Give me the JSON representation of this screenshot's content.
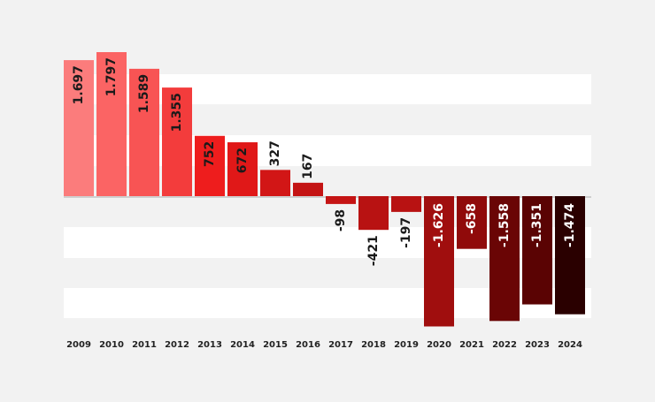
{
  "chart_data": {
    "type": "bar",
    "categories": [
      "2009",
      "2010",
      "2011",
      "2012",
      "2013",
      "2014",
      "2015",
      "2016",
      "2017",
      "2018",
      "2019",
      "2020",
      "2021",
      "2022",
      "2023",
      "2024"
    ],
    "values": [
      1697,
      1797,
      1589,
      1355,
      752,
      672,
      327,
      167,
      -98,
      -421,
      -197,
      -1626,
      -658,
      -1558,
      -1351,
      -1474
    ],
    "value_labels": [
      "1.697",
      "1.797",
      "1.589",
      "1.355",
      "752",
      "672",
      "327",
      "167",
      "-98",
      "-421",
      "-197",
      "-1.626",
      "-658",
      "-1.558",
      "-1.351",
      "-1.474"
    ],
    "title": "",
    "xlabel": "",
    "ylabel": "",
    "ylim": [
      -1700,
      1800
    ],
    "grid": "alternating horizontal bands",
    "legend": "none",
    "colors": [
      "#fb7c7c",
      "#fb6464",
      "#f85454",
      "#f33c3c",
      "#ee1d1d",
      "#e01818",
      "#d21616",
      "#c41313",
      "#c51414",
      "#b81212",
      "#b81212",
      "#a00e0e",
      "#900a0a",
      "#6a0505",
      "#5a0303",
      "#2a0000"
    ]
  }
}
